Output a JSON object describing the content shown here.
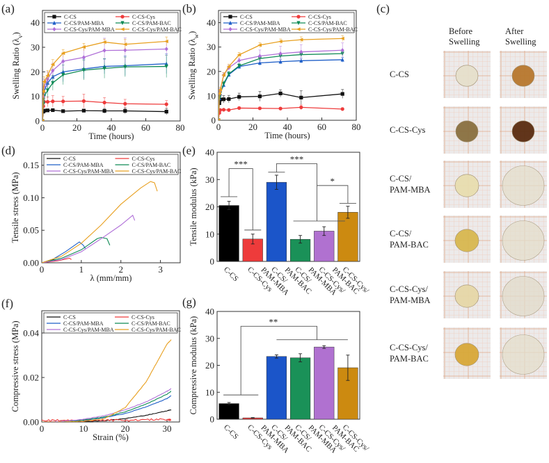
{
  "colors": {
    "C-CS": "#111111",
    "C-CS-Cys": "#ee3b3b",
    "C-CS/PAM-MBA": "#1f5fc8",
    "C-CS/PAM-BAC": "#0f8a55",
    "C-CS-Cys/PAM-MBA": "#b070d8",
    "C-CS-Cys/PAM-BAC": "#e8a020",
    "bars": [
      "#000000",
      "#ee3b3b",
      "#1b55c9",
      "#1a9158",
      "#b071d0",
      "#cc8a10"
    ]
  },
  "chart_data": [
    {
      "id": "a",
      "panel_label": "(a)",
      "type": "line",
      "xlabel": "Time (hours)",
      "ylabel": {
        "main": "Swelling Ratio (λ",
        "sub": "v",
        "end": ")"
      },
      "xlim": [
        0,
        80
      ],
      "ylim": [
        0,
        45
      ],
      "xticks": [
        0,
        20,
        40,
        60,
        80
      ],
      "xtick_labels": [
        "0",
        "20",
        "40",
        "60",
        "80"
      ],
      "yticks": [
        0,
        10,
        20,
        30,
        40
      ],
      "ytick_labels": [
        "0",
        "10",
        "20",
        "30",
        "40"
      ],
      "legend": "top",
      "markers": true,
      "x": [
        0,
        0.5,
        1,
        3,
        6,
        12,
        24,
        36,
        48,
        72
      ],
      "series": [
        {
          "name": "C-CS",
          "marker": "square",
          "values": [
            0,
            3.8,
            4.2,
            4.3,
            4.4,
            4.0,
            4.2,
            4.1,
            4.1,
            3.8
          ],
          "err": [
            0,
            0.5,
            0.5,
            0.6,
            0.6,
            0.5,
            0.6,
            1.0,
            1.2,
            1.3
          ]
        },
        {
          "name": "C-CS-Cys",
          "marker": "circle",
          "values": [
            0,
            6.0,
            7.8,
            7.8,
            8.0,
            8.0,
            8.1,
            7.5,
            7.0,
            6.8
          ],
          "err": [
            0,
            1.0,
            1.5,
            2.0,
            2.3,
            2.0,
            2.8,
            2.0,
            1.8,
            1.5
          ]
        },
        {
          "name": "C-CS/PAM-MBA",
          "marker": "triangle-up",
          "values": [
            0,
            8.0,
            12.0,
            15.5,
            18.0,
            20.0,
            21.2,
            22.2,
            22.5,
            23.3
          ],
          "err": [
            0,
            2,
            3,
            3,
            3,
            4,
            4,
            3,
            4,
            4
          ]
        },
        {
          "name": "C-CS/PAM-BAC",
          "marker": "triangle-down",
          "values": [
            0,
            7.0,
            10.0,
            12.5,
            15.5,
            18.8,
            20.7,
            21.4,
            22.0,
            22.2
          ],
          "err": [
            0,
            2,
            3,
            3,
            3,
            4,
            4,
            4,
            4,
            4.5
          ]
        },
        {
          "name": "C-CS-Cys/PAM-MBA",
          "marker": "diamond",
          "values": [
            0,
            10.0,
            14.0,
            17.0,
            20.5,
            24.3,
            25.9,
            28.7,
            28.8,
            29.3
          ],
          "err": [
            0,
            2,
            3,
            3,
            3,
            3,
            4,
            5,
            5,
            3
          ]
        },
        {
          "name": "C-CS-Cys/PAM-BAC",
          "marker": "triangle-left",
          "values": [
            0,
            12.0,
            16.0,
            18.5,
            23.0,
            27.6,
            30.1,
            32.1,
            31.2,
            32.4
          ],
          "err": [
            0,
            2,
            2,
            2,
            2,
            1.5,
            1.5,
            1.2,
            2.0,
            1.8
          ]
        }
      ]
    },
    {
      "id": "b",
      "panel_label": "(b)",
      "type": "line",
      "xlabel": "Time (hours)",
      "ylabel": {
        "main": "Swelling Ratio (λ",
        "sub": "w",
        "end": ")"
      },
      "xlim": [
        0,
        80
      ],
      "ylim": [
        0,
        45
      ],
      "xticks": [
        0,
        20,
        40,
        60,
        80
      ],
      "xtick_labels": [
        "0",
        "20",
        "40",
        "60",
        "80"
      ],
      "yticks": [
        0,
        10,
        20,
        30,
        40
      ],
      "ytick_labels": [
        "0",
        "10",
        "20",
        "30",
        "40"
      ],
      "legend": "top",
      "markers": true,
      "x": [
        0,
        0.5,
        1,
        3,
        6,
        12,
        24,
        36,
        48,
        72
      ],
      "series": [
        {
          "name": "C-CS",
          "marker": "square",
          "values": [
            0,
            7.0,
            8.5,
            8.6,
            8.7,
            9.6,
            9.8,
            11.0,
            9.3,
            10.8
          ],
          "err": [
            0,
            1,
            1.5,
            1.5,
            1.5,
            1.5,
            2,
            1.5,
            2.8,
            1.8
          ]
        },
        {
          "name": "C-CS-Cys",
          "marker": "circle",
          "values": [
            0,
            3.0,
            4.2,
            4.3,
            4.2,
            5.0,
            4.9,
            4.8,
            5.3,
            4.6
          ],
          "err": [
            0,
            0.5,
            0.5,
            0.5,
            0.5,
            0.5,
            0.5,
            0.5,
            1.0,
            0.5
          ]
        },
        {
          "name": "C-CS/PAM-MBA",
          "marker": "triangle-up",
          "values": [
            0,
            9.0,
            11.0,
            14.5,
            18.7,
            22.0,
            23.5,
            24.0,
            24.4,
            24.8
          ],
          "err": [
            0,
            1,
            1,
            1,
            1,
            1,
            1,
            1,
            1,
            1
          ]
        },
        {
          "name": "C-CS/PAM-BAC",
          "marker": "triangle-down",
          "values": [
            0,
            9.0,
            11.0,
            15.0,
            19.0,
            22.3,
            25.3,
            26.3,
            26.9,
            27.3
          ],
          "err": [
            0,
            1,
            1,
            1,
            1,
            1,
            1,
            1,
            1,
            1
          ]
        },
        {
          "name": "C-CS-Cys/PAM-MBA",
          "marker": "diamond",
          "values": [
            0,
            11.0,
            12.0,
            18.5,
            21.5,
            24.5,
            26.3,
            27.3,
            28.0,
            28.7
          ],
          "err": [
            0,
            1,
            1,
            1,
            1,
            1,
            2.5,
            3,
            3,
            3
          ]
        },
        {
          "name": "C-CS-Cys/PAM-BAC",
          "marker": "triangle-left",
          "values": [
            0,
            11.0,
            12.5,
            18.5,
            22.0,
            26.8,
            30.8,
            32.3,
            33.0,
            33.5
          ],
          "err": [
            0,
            1,
            1,
            1,
            1,
            1,
            1,
            1,
            1.2,
            1.2
          ]
        }
      ]
    },
    {
      "id": "d",
      "panel_label": "(d)",
      "type": "line",
      "xlabel": "λ (mm/mm)",
      "ylabel": {
        "main": "Tensile stress (MPa)",
        "sub": "",
        "end": ""
      },
      "xlim": [
        0,
        3.5
      ],
      "ylim": [
        0,
        0.17
      ],
      "xticks": [
        0,
        1,
        2,
        3
      ],
      "xtick_labels": [
        "0",
        "1",
        "2",
        "3"
      ],
      "yticks": [
        0,
        0.05,
        0.1,
        0.15
      ],
      "ytick_labels": [
        "0.00",
        "0.05",
        "0.10",
        "0.15"
      ],
      "legend": "top",
      "markers": false,
      "series": [
        {
          "name": "C-CS",
          "points": [
            [
              0,
              0
            ],
            [
              0.15,
              0.002
            ],
            [
              0.3,
              0.005
            ],
            [
              0.35,
              0.004
            ]
          ]
        },
        {
          "name": "C-CS-Cys",
          "points": [
            [
              0,
              0
            ],
            [
              0.4,
              0.003
            ],
            [
              0.7,
              0.007
            ],
            [
              0.75,
              0.005
            ]
          ]
        },
        {
          "name": "C-CS/PAM-MBA",
          "points": [
            [
              0,
              0
            ],
            [
              0.3,
              0.006
            ],
            [
              0.6,
              0.017
            ],
            [
              0.95,
              0.032
            ],
            [
              1.05,
              0.027
            ],
            [
              1.1,
              0.022
            ]
          ]
        },
        {
          "name": "C-CS/PAM-BAC",
          "points": [
            [
              0,
              0
            ],
            [
              0.5,
              0.007
            ],
            [
              1.0,
              0.02
            ],
            [
              1.4,
              0.037
            ],
            [
              1.5,
              0.039
            ],
            [
              1.65,
              0.037
            ],
            [
              1.72,
              0.027
            ]
          ]
        },
        {
          "name": "C-CS-Cys/PAM-MBA",
          "points": [
            [
              0,
              0
            ],
            [
              0.5,
              0.005
            ],
            [
              1.0,
              0.017
            ],
            [
              1.5,
              0.037
            ],
            [
              2.0,
              0.058
            ],
            [
              2.3,
              0.073
            ],
            [
              2.35,
              0.065
            ]
          ]
        },
        {
          "name": "C-CS-Cys/PAM-BAC",
          "points": [
            [
              0,
              0
            ],
            [
              0.5,
              0.01
            ],
            [
              1.0,
              0.03
            ],
            [
              1.5,
              0.058
            ],
            [
              2.0,
              0.09
            ],
            [
              2.5,
              0.115
            ],
            [
              2.75,
              0.125
            ],
            [
              2.85,
              0.123
            ],
            [
              2.92,
              0.11
            ]
          ]
        }
      ]
    },
    {
      "id": "e",
      "panel_label": "(e)",
      "type": "bar",
      "ylabel": "Tensile modulus (kPa)",
      "ylim": [
        0,
        40
      ],
      "yticks": [
        0,
        10,
        20,
        30,
        40
      ],
      "ytick_labels": [
        "0",
        "10",
        "20",
        "30",
        "40"
      ],
      "categories": [
        "C-CS",
        "C-CS-Cys",
        "C-CS/PAM-MBA",
        "C-CS/PAM-BAC",
        "C-CS-Cys/PAM-MBA",
        "C-CS-Cys/PAM-BAC"
      ],
      "values": [
        20.5,
        8.2,
        29.0,
        8.1,
        11.1,
        18.0
      ],
      "err": [
        1.5,
        1.8,
        2.6,
        1.4,
        1.6,
        2.2
      ],
      "significance": [
        "***",
        "***",
        "*"
      ]
    },
    {
      "id": "f",
      "panel_label": "(f)",
      "type": "line",
      "xlabel": "Strain (%)",
      "ylabel": {
        "main": "Compressive stress (MPa)",
        "sub": "",
        "end": ""
      },
      "xlim": [
        0,
        33
      ],
      "ylim": [
        0,
        0.05
      ],
      "xticks": [
        0,
        10,
        20,
        30
      ],
      "xtick_labels": [
        "0",
        "10",
        "20",
        "30"
      ],
      "yticks": [
        0,
        0.02,
        0.04
      ],
      "ytick_labels": [
        "0.00",
        "0.02",
        "0.04"
      ],
      "legend": "top",
      "markers": false,
      "x": [
        0,
        5,
        10,
        15,
        20,
        25,
        30,
        31
      ],
      "series": [
        {
          "name": "C-CS",
          "values": [
            0,
            0,
            0.0002,
            0.0006,
            0.0015,
            0.003,
            0.005,
            0.0055
          ]
        },
        {
          "name": "C-CS-Cys",
          "values": [
            0.0005,
            0.0008,
            0.0006,
            0.0009,
            0.0007,
            0.001,
            0.0012,
            0.001
          ]
        },
        {
          "name": "C-CS/PAM-MBA",
          "values": [
            0,
            0.0002,
            0.0008,
            0.002,
            0.0038,
            0.0068,
            0.0105,
            0.0118
          ]
        },
        {
          "name": "C-CS/PAM-BAC",
          "values": [
            0,
            0.0002,
            0.0009,
            0.0022,
            0.0045,
            0.008,
            0.0125,
            0.0138
          ]
        },
        {
          "name": "C-CS-Cys/PAM-MBA",
          "values": [
            0,
            0.0003,
            0.0012,
            0.0028,
            0.0055,
            0.009,
            0.0138,
            0.015
          ]
        },
        {
          "name": "C-CS-Cys/PAM-BAC",
          "values": [
            0,
            0,
            0.0003,
            0.0015,
            0.0065,
            0.018,
            0.035,
            0.037
          ]
        }
      ]
    },
    {
      "id": "g",
      "panel_label": "(g)",
      "type": "bar",
      "ylabel": "Compressive modulus (kPa)",
      "ylim": [
        0,
        40
      ],
      "yticks": [
        0,
        10,
        20,
        30,
        40
      ],
      "ytick_labels": [
        "0",
        "10",
        "20",
        "30",
        "40"
      ],
      "categories": [
        "C-CS",
        "C-CS-Cys",
        "C-CS/PAM-MBA",
        "C-CS/PAM-BAC",
        "C-CS-Cys/PAM-MBA",
        "C-CS-Cys/PAM-BAC"
      ],
      "values": [
        5.8,
        0.5,
        23.3,
        22.8,
        26.8,
        19.1
      ],
      "err": [
        0.4,
        0.1,
        0.6,
        1.5,
        0.5,
        4.7
      ],
      "significance": [
        "**"
      ]
    }
  ],
  "photos": {
    "panel_label": "(c)",
    "column_headers": [
      [
        "Before",
        "Swelling"
      ],
      [
        "After",
        "Swelling"
      ]
    ],
    "rows": [
      {
        "label": [
          "C-CS"
        ],
        "before": "#e6e0cc",
        "after": "#b8782e"
      },
      {
        "label": [
          "C-CS-Cys"
        ],
        "before": "#8a7040",
        "after": "#5a2c10"
      },
      {
        "label": [
          "C-CS/",
          "PAM-MBA"
        ],
        "before": "#e8deb0",
        "after": "#e4dfcc"
      },
      {
        "label": [
          "C-CS/",
          "PAM-BAC"
        ],
        "before": "#d8b850",
        "after": "#e4dfcc"
      },
      {
        "label": [
          "C-CS-Cys/",
          "PAM-MBA"
        ],
        "before": "#e6d8a8",
        "after": "#e2dccb"
      },
      {
        "label": [
          "C-CS-Cys/",
          "PAM-BAC"
        ],
        "before": "#d8a838",
        "after": "#e4dfcc"
      }
    ]
  }
}
